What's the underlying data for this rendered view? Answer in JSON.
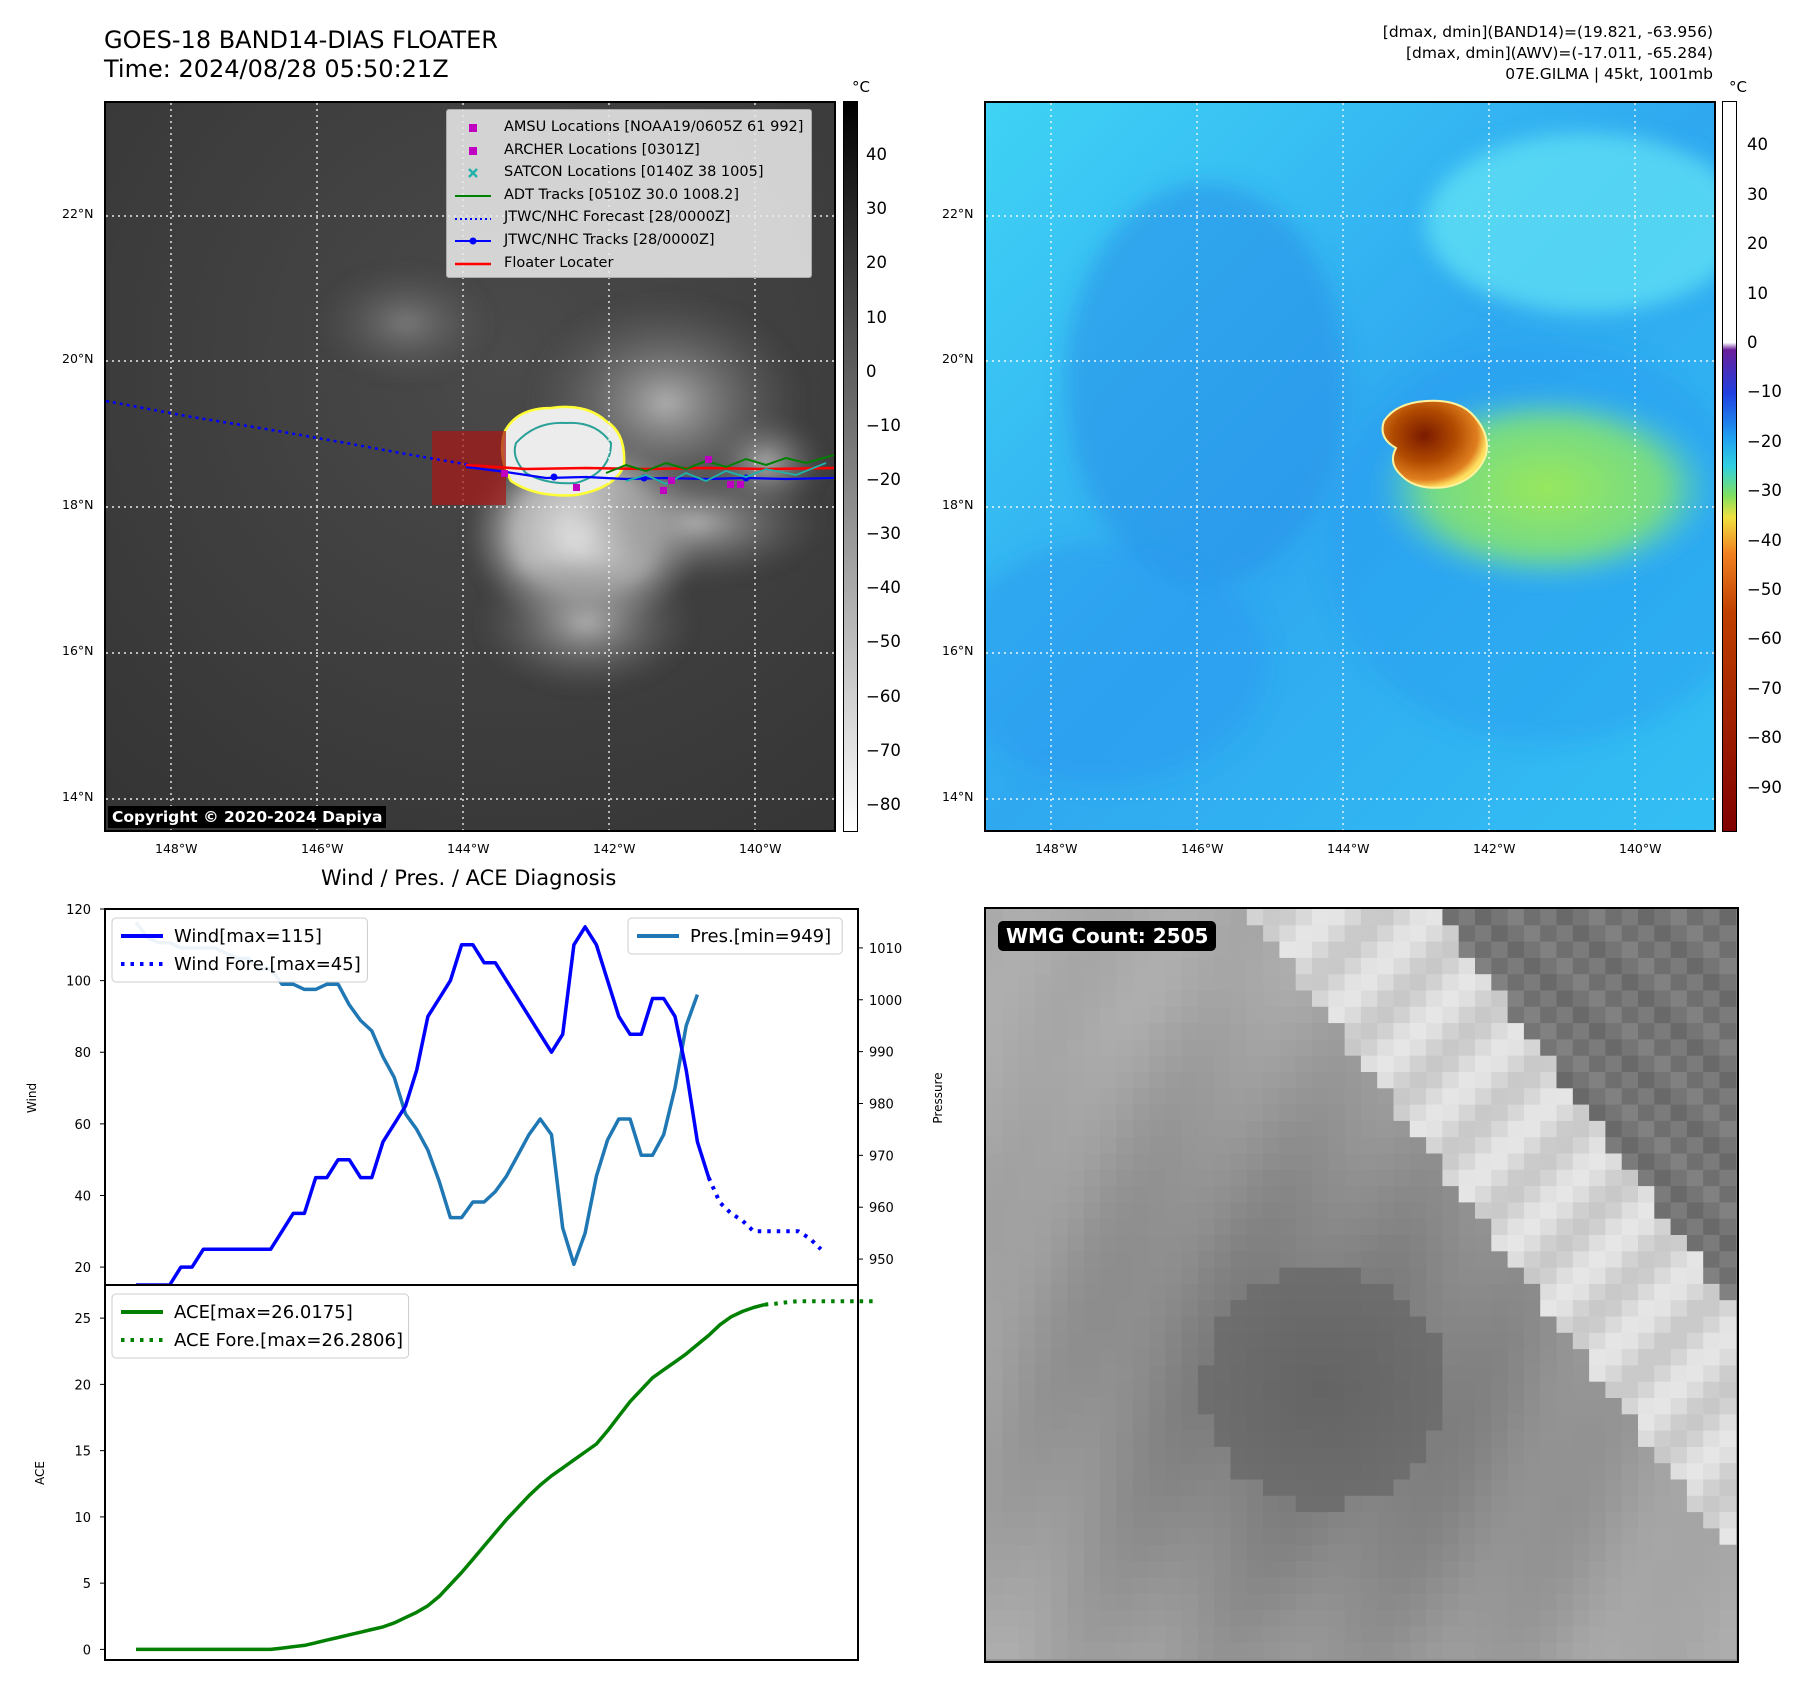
{
  "header": {
    "title_line1": "GOES-18 BAND14-DIAS FLOATER",
    "title_line2": "Time: 2024/08/28 05:50:21Z",
    "meta_line1": "[dmax, dmin](BAND14)=(19.821, -63.956)",
    "meta_line2": "[dmax, dmin](AWV)=(-17.011, -65.284)",
    "meta_line3": "07E.GILMA | 45kt, 1001mb"
  },
  "map": {
    "lon_ticks": [
      "148°W",
      "146°W",
      "144°W",
      "142°W",
      "140°W"
    ],
    "lat_ticks": [
      "22°N",
      "20°N",
      "18°N",
      "16°N",
      "14°N"
    ],
    "copyright": "Copyright © 2020-2024 Dapiya",
    "legend": [
      {
        "label": "AMSU Locations [NOAA19/0605Z 61 992]",
        "color": "#c000c0",
        "icon": "square-marker-icon"
      },
      {
        "label": "ARCHER Locations [0301Z]",
        "color": "#c000c0",
        "icon": "square-marker-icon"
      },
      {
        "label": "SATCON Locations [0140Z 38 1005]",
        "color": "#20b2aa",
        "icon": "x-marker-icon"
      },
      {
        "label": "ADT Tracks [0510Z 30.0 1008.2]",
        "color": "#008000",
        "icon": "solid-line-icon"
      },
      {
        "label": "JTWC/NHC Forecast [28/0000Z]",
        "color": "#0000ff",
        "icon": "dotted-line-icon"
      },
      {
        "label": "JTWC/NHC Tracks [28/0000Z]",
        "color": "#0000ff",
        "icon": "line-dot-icon"
      },
      {
        "label": "Floater Locater",
        "color": "#ff0000",
        "icon": "solid-line-icon"
      }
    ]
  },
  "colorbar_bt": {
    "unit": "°C",
    "ticks": [
      "40",
      "30",
      "20",
      "10",
      "0",
      "−10",
      "−20",
      "−30",
      "−40",
      "−50",
      "−60",
      "−70",
      "−80"
    ]
  },
  "colorbar_awv": {
    "unit": "°C",
    "ticks": [
      "40",
      "30",
      "20",
      "10",
      "0",
      "−10",
      "−20",
      "−30",
      "−40",
      "−50",
      "−60",
      "−70",
      "−80",
      "−90"
    ]
  },
  "wmg": {
    "label": "WMG Count: 2505"
  },
  "chart_data": [
    {
      "type": "line",
      "title": "Wind / Pres. / ACE Diagnosis",
      "ylabel": "Wind",
      "y2label": "Pressure",
      "ylim": [
        15,
        120
      ],
      "y2lim": [
        945,
        1017.5
      ],
      "yticks": [
        20,
        40,
        60,
        80,
        100,
        120
      ],
      "y2ticks": [
        950,
        960,
        970,
        980,
        990,
        1000,
        1010
      ],
      "series": [
        {
          "name": "Wind[max=115]",
          "color": "#0000ff",
          "style": "solid",
          "axis": "left",
          "values": [
            15,
            15,
            15,
            15,
            20,
            20,
            25,
            25,
            25,
            25,
            25,
            25,
            25,
            30,
            35,
            35,
            45,
            45,
            50,
            50,
            45,
            45,
            55,
            60,
            65,
            75,
            90,
            95,
            100,
            110,
            110,
            105,
            105,
            100,
            95,
            90,
            85,
            80,
            85,
            110,
            115,
            110,
            100,
            90,
            85,
            85,
            95,
            95,
            90,
            75,
            55,
            45
          ]
        },
        {
          "name": "Wind Fore.[max=45]",
          "color": "#0000ff",
          "style": "dotted",
          "axis": "left",
          "values": [
            45,
            38,
            35,
            33,
            30,
            30,
            30,
            30,
            30,
            28,
            25
          ],
          "start_index": 51
        },
        {
          "name": "Pres.[min=949]",
          "color": "#1f77b4",
          "style": "solid",
          "axis": "right",
          "values": [
            1015,
            1012,
            1011,
            1011,
            1010,
            1010,
            1010,
            1010,
            1009,
            1008,
            1008,
            1006,
            1006,
            1003,
            1003,
            1002,
            1002,
            1003,
            1003,
            999,
            996,
            994,
            989,
            985,
            978,
            975,
            971,
            965,
            958,
            958,
            961,
            961,
            963,
            966,
            970,
            974,
            977,
            974,
            956,
            949,
            955,
            966,
            973,
            977,
            977,
            970,
            970,
            974,
            983,
            995,
            1001
          ]
        }
      ]
    },
    {
      "type": "line",
      "ylabel": "ACE",
      "ylim": [
        -0.8,
        27.5
      ],
      "yticks": [
        0,
        5,
        10,
        15,
        20,
        25
      ],
      "series": [
        {
          "name": "ACE[max=26.0175]",
          "color": "#008000",
          "style": "solid",
          "values": [
            0,
            0,
            0,
            0,
            0,
            0,
            0,
            0,
            0,
            0,
            0,
            0,
            0,
            0.1,
            0.2,
            0.3,
            0.5,
            0.7,
            0.9,
            1.1,
            1.3,
            1.5,
            1.7,
            2.0,
            2.4,
            2.8,
            3.3,
            4.0,
            4.9,
            5.8,
            6.8,
            7.8,
            8.8,
            9.8,
            10.7,
            11.6,
            12.4,
            13.1,
            13.7,
            14.3,
            14.9,
            15.5,
            16.5,
            17.6,
            18.7,
            19.6,
            20.5,
            21.1,
            21.7,
            22.3,
            23.0,
            23.7,
            24.5,
            25.1,
            25.5,
            25.8,
            26.0175
          ]
        },
        {
          "name": "ACE Fore.[max=26.2806]",
          "color": "#008000",
          "style": "dotted",
          "values": [
            26.0175,
            26.1,
            26.2,
            26.2806,
            26.2806,
            26.2806,
            26.2806,
            26.2806,
            26.2806,
            26.2806,
            26.2806
          ],
          "start_index": 56
        }
      ]
    }
  ]
}
